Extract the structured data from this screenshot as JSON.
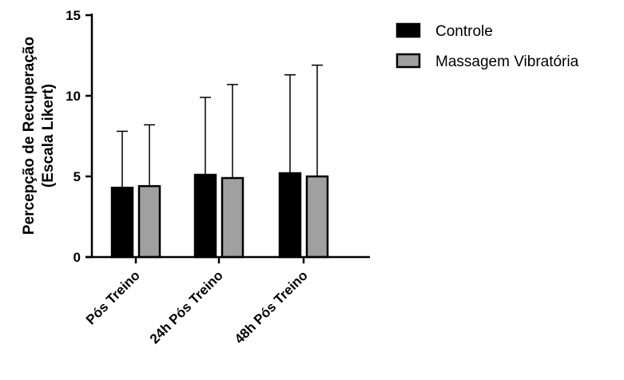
{
  "chart_data": {
    "type": "bar",
    "categories": [
      "Pós Treino",
      "24h Pós Treino",
      "48h Pós Treino"
    ],
    "series": [
      {
        "name": "Controle",
        "values": [
          4.3,
          5.1,
          5.2
        ],
        "sd": [
          3.5,
          4.8,
          6.1
        ],
        "color": "#000000"
      },
      {
        "name": "Massagem Vibratória",
        "values": [
          4.4,
          4.9,
          5.0
        ],
        "sd": [
          3.8,
          5.8,
          6.9
        ],
        "color": "#a0a0a0"
      }
    ],
    "title": "",
    "xlabel": "",
    "ylabel_lines": [
      "Percepção de Recuperação",
      "(Escala Likert)"
    ],
    "ylim": [
      0,
      15
    ],
    "yticks": [
      0,
      5,
      10,
      15
    ],
    "grid": false,
    "legend_position": "top-right",
    "error_bars": "upper"
  }
}
